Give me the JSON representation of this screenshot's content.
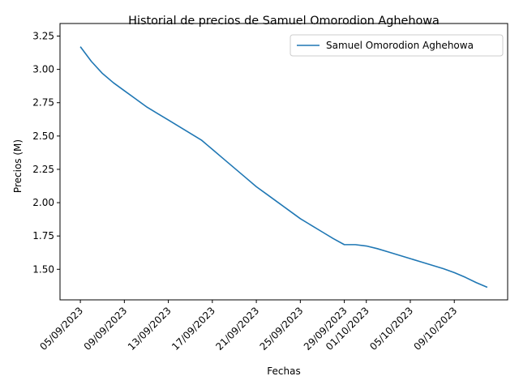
{
  "chart_data": {
    "type": "line",
    "title": "Historial de precios de Samuel Omorodion Aghehowa",
    "xlabel": "Fechas",
    "ylabel": "Precios (M)",
    "x_ticks": [
      "05/09/2023",
      "09/09/2023",
      "13/09/2023",
      "17/09/2023",
      "21/09/2023",
      "25/09/2023",
      "29/09/2023",
      "01/10/2023",
      "05/10/2023",
      "09/10/2023"
    ],
    "y_ticks": [
      1.5,
      1.75,
      2.0,
      2.25,
      2.5,
      2.75,
      3.0,
      3.25
    ],
    "ylim": [
      1.365,
      3.25
    ],
    "legend_position": "top-right",
    "grid": false,
    "series": [
      {
        "name": "Samuel Omorodion Aghehowa",
        "color": "#1f77b4",
        "points": [
          [
            "05/09/2023",
            3.17
          ],
          [
            "06/09/2023",
            3.06
          ],
          [
            "07/09/2023",
            2.97
          ],
          [
            "08/09/2023",
            2.9
          ],
          [
            "09/09/2023",
            2.84
          ],
          [
            "10/09/2023",
            2.78
          ],
          [
            "11/09/2023",
            2.72
          ],
          [
            "12/09/2023",
            2.67
          ],
          [
            "13/09/2023",
            2.62
          ],
          [
            "14/09/2023",
            2.57
          ],
          [
            "15/09/2023",
            2.52
          ],
          [
            "16/09/2023",
            2.47
          ],
          [
            "17/09/2023",
            2.4
          ],
          [
            "18/09/2023",
            2.33
          ],
          [
            "19/09/2023",
            2.26
          ],
          [
            "20/09/2023",
            2.19
          ],
          [
            "21/09/2023",
            2.12
          ],
          [
            "22/09/2023",
            2.06
          ],
          [
            "23/09/2023",
            2.0
          ],
          [
            "24/09/2023",
            1.94
          ],
          [
            "25/09/2023",
            1.88
          ],
          [
            "26/09/2023",
            1.83
          ],
          [
            "27/09/2023",
            1.78
          ],
          [
            "28/09/2023",
            1.73
          ],
          [
            "29/09/2023",
            1.685
          ],
          [
            "30/09/2023",
            1.685
          ],
          [
            "01/10/2023",
            1.675
          ],
          [
            "02/10/2023",
            1.655
          ],
          [
            "03/10/2023",
            1.63
          ],
          [
            "04/10/2023",
            1.605
          ],
          [
            "05/10/2023",
            1.58
          ],
          [
            "06/10/2023",
            1.555
          ],
          [
            "07/10/2023",
            1.53
          ],
          [
            "08/10/2023",
            1.505
          ],
          [
            "09/10/2023",
            1.475
          ],
          [
            "10/10/2023",
            1.44
          ],
          [
            "11/10/2023",
            1.4
          ],
          [
            "12/10/2023",
            1.365
          ]
        ]
      }
    ]
  }
}
